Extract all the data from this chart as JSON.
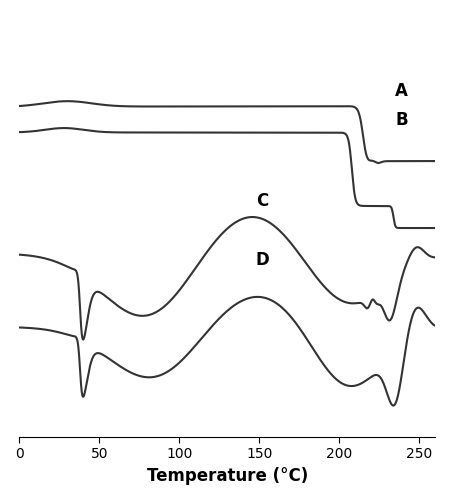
{
  "title": "",
  "xlabel": "Temperature (°C)",
  "ylabel": "",
  "xlim": [
    0,
    260
  ],
  "xticks": [
    0,
    50,
    100,
    150,
    200,
    250
  ],
  "line_color": "#333333",
  "line_width": 1.5,
  "bg_color": "#ffffff",
  "label_A": "A",
  "label_B": "B",
  "label_C": "C",
  "label_D": "D",
  "label_fontsize": 12,
  "xlabel_fontsize": 12
}
